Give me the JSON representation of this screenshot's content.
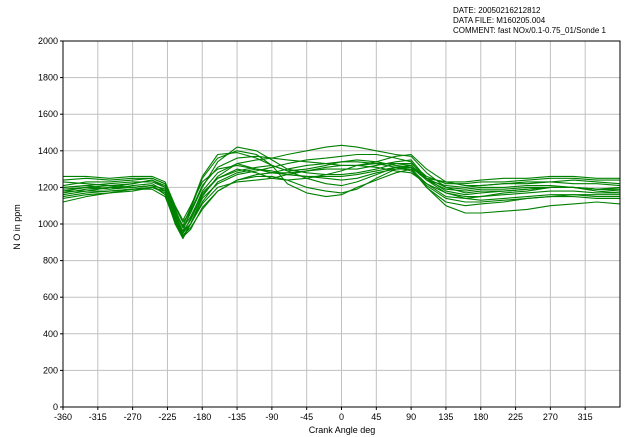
{
  "header": {
    "date": "DATE: 20050216212812",
    "data_file": "DATA FILE: M160205.004",
    "comment": "COMMENT: fast NOx/0.1-0.75_01/Sonde 1"
  },
  "colors": {
    "series": "#008000",
    "grid": "#c0c0c0",
    "axis": "#000000"
  },
  "chart_data": {
    "type": "line",
    "xlabel": "Crank Angle deg",
    "ylabel": "N O in ppm",
    "xlim": [
      -360,
      360
    ],
    "ylim": [
      0,
      2000
    ],
    "xticks": [
      -360,
      -315,
      -270,
      -225,
      -180,
      -135,
      -90,
      -45,
      0,
      45,
      90,
      135,
      180,
      225,
      270,
      315
    ],
    "yticks": [
      0,
      200,
      400,
      600,
      800,
      1000,
      1200,
      1400,
      1600,
      1800,
      2000
    ],
    "grid": true,
    "x": [
      -360,
      -330,
      -300,
      -270,
      -245,
      -228,
      -215,
      -205,
      -195,
      -180,
      -160,
      -135,
      -110,
      -90,
      -70,
      -45,
      -20,
      0,
      20,
      45,
      70,
      90,
      110,
      135,
      160,
      180,
      210,
      240,
      270,
      300,
      330,
      360
    ],
    "series": [
      {
        "values": [
          1180,
          1200,
          1190,
          1210,
          1220,
          1180,
          1000,
          930,
          1000,
          1150,
          1260,
          1330,
          1300,
          1280,
          1280,
          1290,
          1300,
          1300,
          1300,
          1320,
          1340,
          1350,
          1250,
          1180,
          1160,
          1170,
          1180,
          1190,
          1200,
          1200,
          1190,
          1180
        ]
      },
      {
        "values": [
          1160,
          1180,
          1200,
          1220,
          1240,
          1200,
          1050,
          960,
          1080,
          1250,
          1360,
          1400,
          1380,
          1320,
          1220,
          1170,
          1150,
          1160,
          1200,
          1240,
          1280,
          1300,
          1220,
          1150,
          1140,
          1150,
          1170,
          1180,
          1200,
          1200,
          1180,
          1170
        ]
      },
      {
        "values": [
          1200,
          1210,
          1190,
          1200,
          1210,
          1190,
          1030,
          950,
          1030,
          1180,
          1280,
          1330,
          1350,
          1360,
          1380,
          1400,
          1420,
          1430,
          1420,
          1400,
          1380,
          1370,
          1280,
          1200,
          1170,
          1180,
          1180,
          1190,
          1200,
          1200,
          1190,
          1200
        ]
      },
      {
        "values": [
          1140,
          1160,
          1170,
          1180,
          1200,
          1170,
          1020,
          940,
          980,
          1080,
          1180,
          1240,
          1260,
          1260,
          1240,
          1200,
          1180,
          1170,
          1190,
          1250,
          1300,
          1310,
          1200,
          1100,
          1060,
          1060,
          1070,
          1080,
          1100,
          1110,
          1120,
          1110
        ]
      },
      {
        "values": [
          1240,
          1250,
          1240,
          1250,
          1250,
          1220,
          1080,
          980,
          1060,
          1200,
          1340,
          1420,
          1400,
          1350,
          1300,
          1280,
          1270,
          1270,
          1280,
          1300,
          1330,
          1330,
          1260,
          1220,
          1220,
          1230,
          1230,
          1240,
          1250,
          1250,
          1240,
          1240
        ]
      },
      {
        "values": [
          1170,
          1190,
          1200,
          1200,
          1210,
          1160,
          1000,
          920,
          1000,
          1140,
          1220,
          1270,
          1290,
          1310,
          1330,
          1350,
          1360,
          1370,
          1380,
          1380,
          1360,
          1340,
          1240,
          1170,
          1140,
          1130,
          1140,
          1150,
          1160,
          1160,
          1150,
          1150
        ]
      },
      {
        "values": [
          1200,
          1210,
          1220,
          1230,
          1230,
          1200,
          1060,
          980,
          1040,
          1170,
          1250,
          1300,
          1280,
          1250,
          1240,
          1250,
          1270,
          1290,
          1320,
          1330,
          1330,
          1320,
          1250,
          1200,
          1190,
          1200,
          1200,
          1210,
          1210,
          1200,
          1190,
          1190
        ]
      },
      {
        "values": [
          1120,
          1150,
          1170,
          1190,
          1200,
          1180,
          1040,
          960,
          1000,
          1120,
          1230,
          1280,
          1300,
          1290,
          1270,
          1260,
          1250,
          1240,
          1250,
          1280,
          1300,
          1300,
          1200,
          1120,
          1100,
          1110,
          1120,
          1140,
          1150,
          1160,
          1160,
          1160
        ]
      },
      {
        "values": [
          1230,
          1220,
          1210,
          1220,
          1240,
          1210,
          1070,
          990,
          1090,
          1260,
          1380,
          1390,
          1360,
          1320,
          1290,
          1300,
          1320,
          1340,
          1350,
          1340,
          1320,
          1310,
          1240,
          1210,
          1200,
          1210,
          1220,
          1230,
          1230,
          1220,
          1220,
          1210
        ]
      },
      {
        "values": [
          1180,
          1180,
          1180,
          1190,
          1200,
          1180,
          1040,
          950,
          1000,
          1110,
          1200,
          1230,
          1240,
          1250,
          1270,
          1290,
          1310,
          1320,
          1320,
          1310,
          1290,
          1280,
          1220,
          1170,
          1150,
          1150,
          1160,
          1170,
          1180,
          1180,
          1170,
          1170
        ]
      },
      {
        "values": [
          1210,
          1230,
          1230,
          1240,
          1250,
          1220,
          1090,
          1010,
          1070,
          1210,
          1310,
          1360,
          1370,
          1360,
          1350,
          1340,
          1330,
          1320,
          1320,
          1340,
          1370,
          1380,
          1300,
          1230,
          1210,
          1210,
          1220,
          1220,
          1230,
          1240,
          1230,
          1220
        ]
      },
      {
        "values": [
          1150,
          1170,
          1180,
          1190,
          1190,
          1150,
          1010,
          930,
          970,
          1090,
          1180,
          1240,
          1270,
          1280,
          1300,
          1320,
          1330,
          1340,
          1340,
          1330,
          1310,
          1290,
          1210,
          1140,
          1120,
          1120,
          1130,
          1140,
          1150,
          1150,
          1140,
          1140
        ]
      },
      {
        "values": [
          1190,
          1200,
          1210,
          1200,
          1210,
          1190,
          1050,
          960,
          1020,
          1160,
          1250,
          1290,
          1310,
          1320,
          1290,
          1250,
          1220,
          1210,
          1230,
          1270,
          1310,
          1320,
          1240,
          1190,
          1180,
          1190,
          1190,
          1200,
          1200,
          1200,
          1190,
          1190
        ]
      },
      {
        "values": [
          1260,
          1260,
          1250,
          1260,
          1260,
          1230,
          1100,
          1020,
          1100,
          1230,
          1300,
          1320,
          1300,
          1280,
          1270,
          1260,
          1260,
          1260,
          1270,
          1290,
          1310,
          1310,
          1250,
          1230,
          1230,
          1240,
          1250,
          1250,
          1260,
          1260,
          1250,
          1250
        ]
      }
    ]
  }
}
